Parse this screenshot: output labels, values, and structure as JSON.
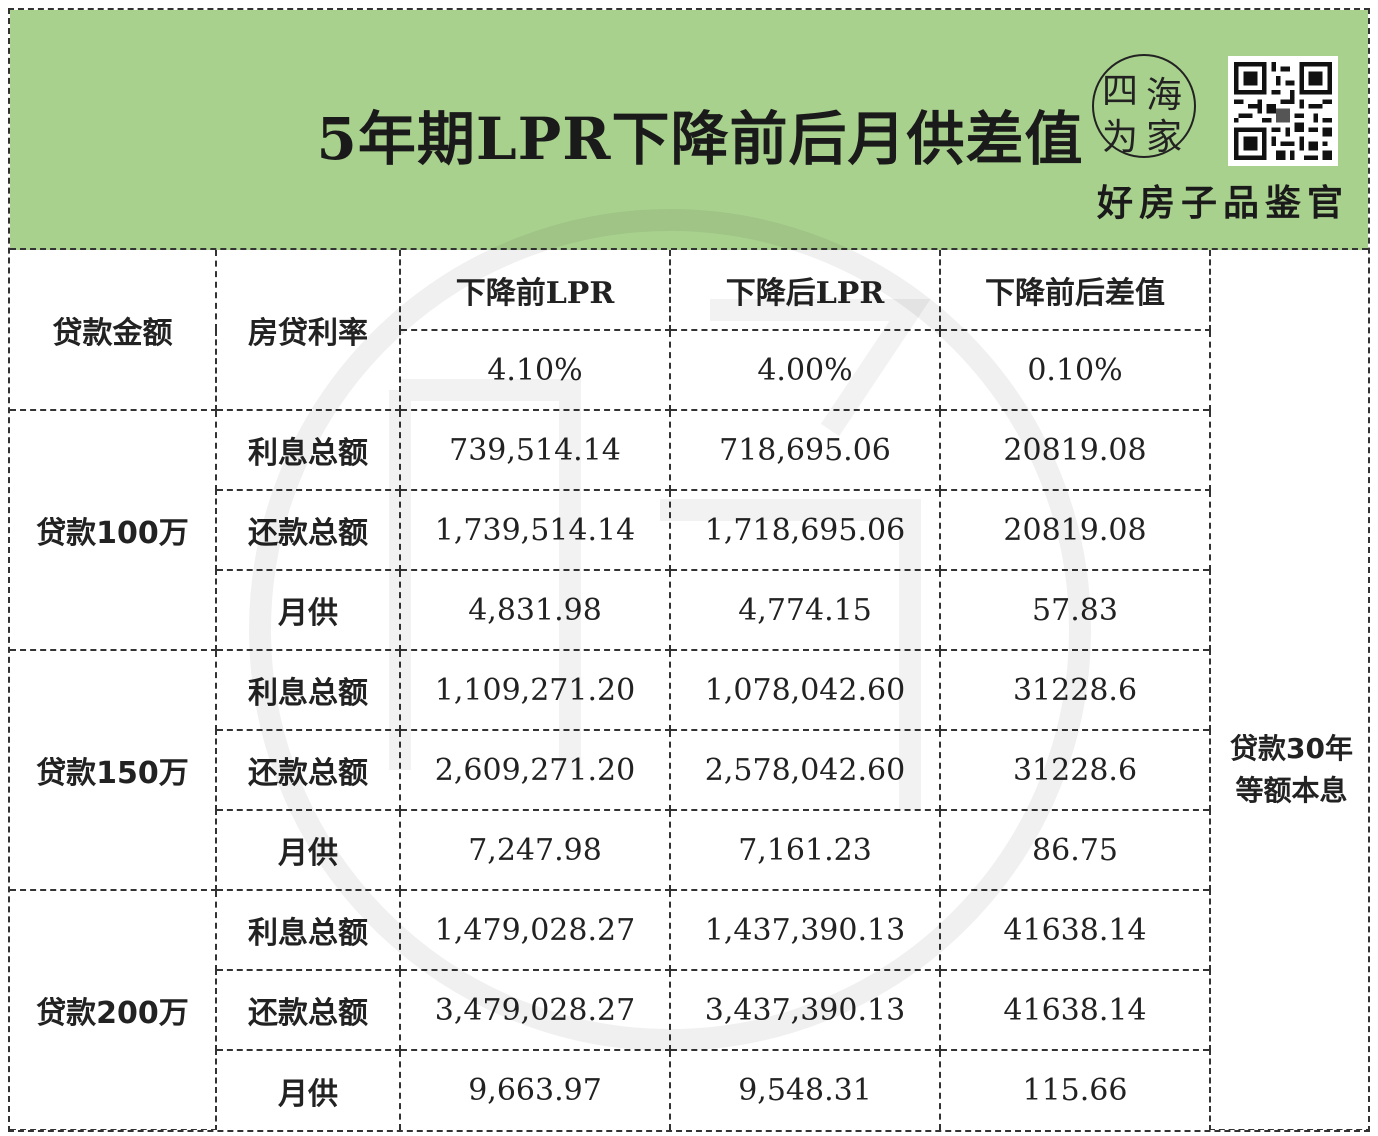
{
  "header": {
    "title": "5年期LPR下降前后月供差值",
    "brand": "好房子品鉴官",
    "logo_chars": [
      "四",
      "海",
      "为",
      "家"
    ],
    "bg_color": "#a9d18e"
  },
  "table": {
    "head": {
      "loan_amount": "贷款金额",
      "rate": "房贷利率",
      "col_before": "下降前LPR",
      "col_after": "下降后LPR",
      "col_diff": "下降前后差值",
      "rate_before": "4.10%",
      "rate_after": "4.00%",
      "rate_diff": "0.10%"
    },
    "note": "贷款30年等额本息",
    "groups": [
      {
        "label": "贷款100万",
        "rows": [
          {
            "label": "利息总额",
            "before": "739,514.14",
            "after": "718,695.06",
            "diff": "20819.08"
          },
          {
            "label": "还款总额",
            "before": "1,739,514.14",
            "after": "1,718,695.06",
            "diff": "20819.08"
          },
          {
            "label": "月供",
            "before": "4,831.98",
            "after": "4,774.15",
            "diff": "57.83"
          }
        ]
      },
      {
        "label": "贷款150万",
        "rows": [
          {
            "label": "利息总额",
            "before": "1,109,271.20",
            "after": "1,078,042.60",
            "diff": "31228.6"
          },
          {
            "label": "还款总额",
            "before": "2,609,271.20",
            "after": "2,578,042.60",
            "diff": "31228.6"
          },
          {
            "label": "月供",
            "before": "7,247.98",
            "after": "7,161.23",
            "diff": "86.75"
          }
        ]
      },
      {
        "label": "贷款200万",
        "rows": [
          {
            "label": "利息总额",
            "before": "1,479,028.27",
            "after": "1,437,390.13",
            "diff": "41638.14"
          },
          {
            "label": "还款总额",
            "before": "3,479,028.27",
            "after": "3,437,390.13",
            "diff": "41638.14"
          },
          {
            "label": "月供",
            "before": "9,663.97",
            "after": "9,548.31",
            "diff": "115.66"
          }
        ]
      }
    ]
  }
}
